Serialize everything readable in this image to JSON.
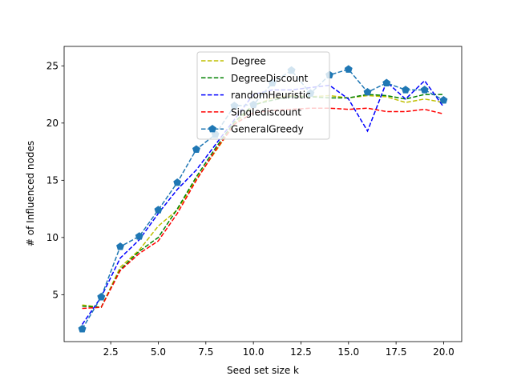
{
  "chart_data": {
    "type": "line",
    "xlabel": "Seed set size k",
    "ylabel": "# of Influenced nodes",
    "xlim": [
      0.05,
      20.95
    ],
    "ylim": [
      0.9,
      26.7
    ],
    "xticks": [
      2.5,
      5.0,
      7.5,
      10.0,
      12.5,
      15.0,
      17.5,
      20.0
    ],
    "xtick_labels": [
      "2.5",
      "5.0",
      "7.5",
      "10.0",
      "12.5",
      "15.0",
      "17.5",
      "20.0"
    ],
    "yticks": [
      5,
      10,
      15,
      20,
      25
    ],
    "ytick_labels": [
      "5",
      "10",
      "15",
      "20",
      "25"
    ],
    "grid": false,
    "legend_position": "top-center",
    "x": [
      1,
      2,
      3,
      4,
      5,
      6,
      7,
      8,
      9,
      10,
      11,
      12,
      13,
      14,
      15,
      16,
      17,
      18,
      19,
      20
    ],
    "series": [
      {
        "name": "Degree",
        "color": "#bfbf00",
        "style": "dashed",
        "marker": "none",
        "values": [
          4.1,
          3.9,
          7.4,
          8.9,
          11.0,
          12.4,
          15.1,
          17.5,
          19.9,
          21.5,
          22.2,
          22.4,
          22.3,
          22.4,
          22.2,
          22.4,
          22.3,
          21.8,
          22.1,
          21.8
        ]
      },
      {
        "name": "DegreeDiscount",
        "color": "#008000",
        "style": "dashed",
        "marker": "none",
        "values": [
          4.0,
          3.9,
          7.2,
          8.8,
          10.0,
          12.5,
          15.3,
          17.8,
          20.1,
          21.6,
          22.0,
          22.3,
          22.3,
          22.2,
          22.2,
          22.5,
          22.4,
          22.1,
          22.5,
          22.5
        ]
      },
      {
        "name": "randomHeuristic",
        "color": "#0000ff",
        "style": "dashed",
        "marker": "none",
        "values": [
          2.4,
          4.8,
          8.2,
          9.8,
          12.1,
          14.2,
          15.9,
          18.1,
          20.3,
          22.5,
          22.9,
          22.9,
          23.1,
          23.3,
          22.1,
          19.3,
          23.6,
          22.1,
          23.7,
          21.4
        ]
      },
      {
        "name": "Singlediscount",
        "color": "#ff0000",
        "style": "dashed",
        "marker": "none",
        "values": [
          3.8,
          3.9,
          7.1,
          8.6,
          9.7,
          12.1,
          15.0,
          17.6,
          19.9,
          20.9,
          21.1,
          21.2,
          21.3,
          21.3,
          21.2,
          21.3,
          21.0,
          21.0,
          21.2,
          20.8
        ]
      },
      {
        "name": "GeneralGreedy",
        "color": "#1f77b4",
        "style": "dashed",
        "marker": "pentagon",
        "values": [
          2.0,
          4.8,
          9.2,
          10.1,
          12.4,
          14.8,
          17.7,
          19.0,
          21.5,
          21.6,
          23.5,
          24.6,
          22.6,
          24.2,
          24.7,
          22.7,
          23.5,
          22.9,
          22.9,
          22.0
        ]
      }
    ]
  }
}
